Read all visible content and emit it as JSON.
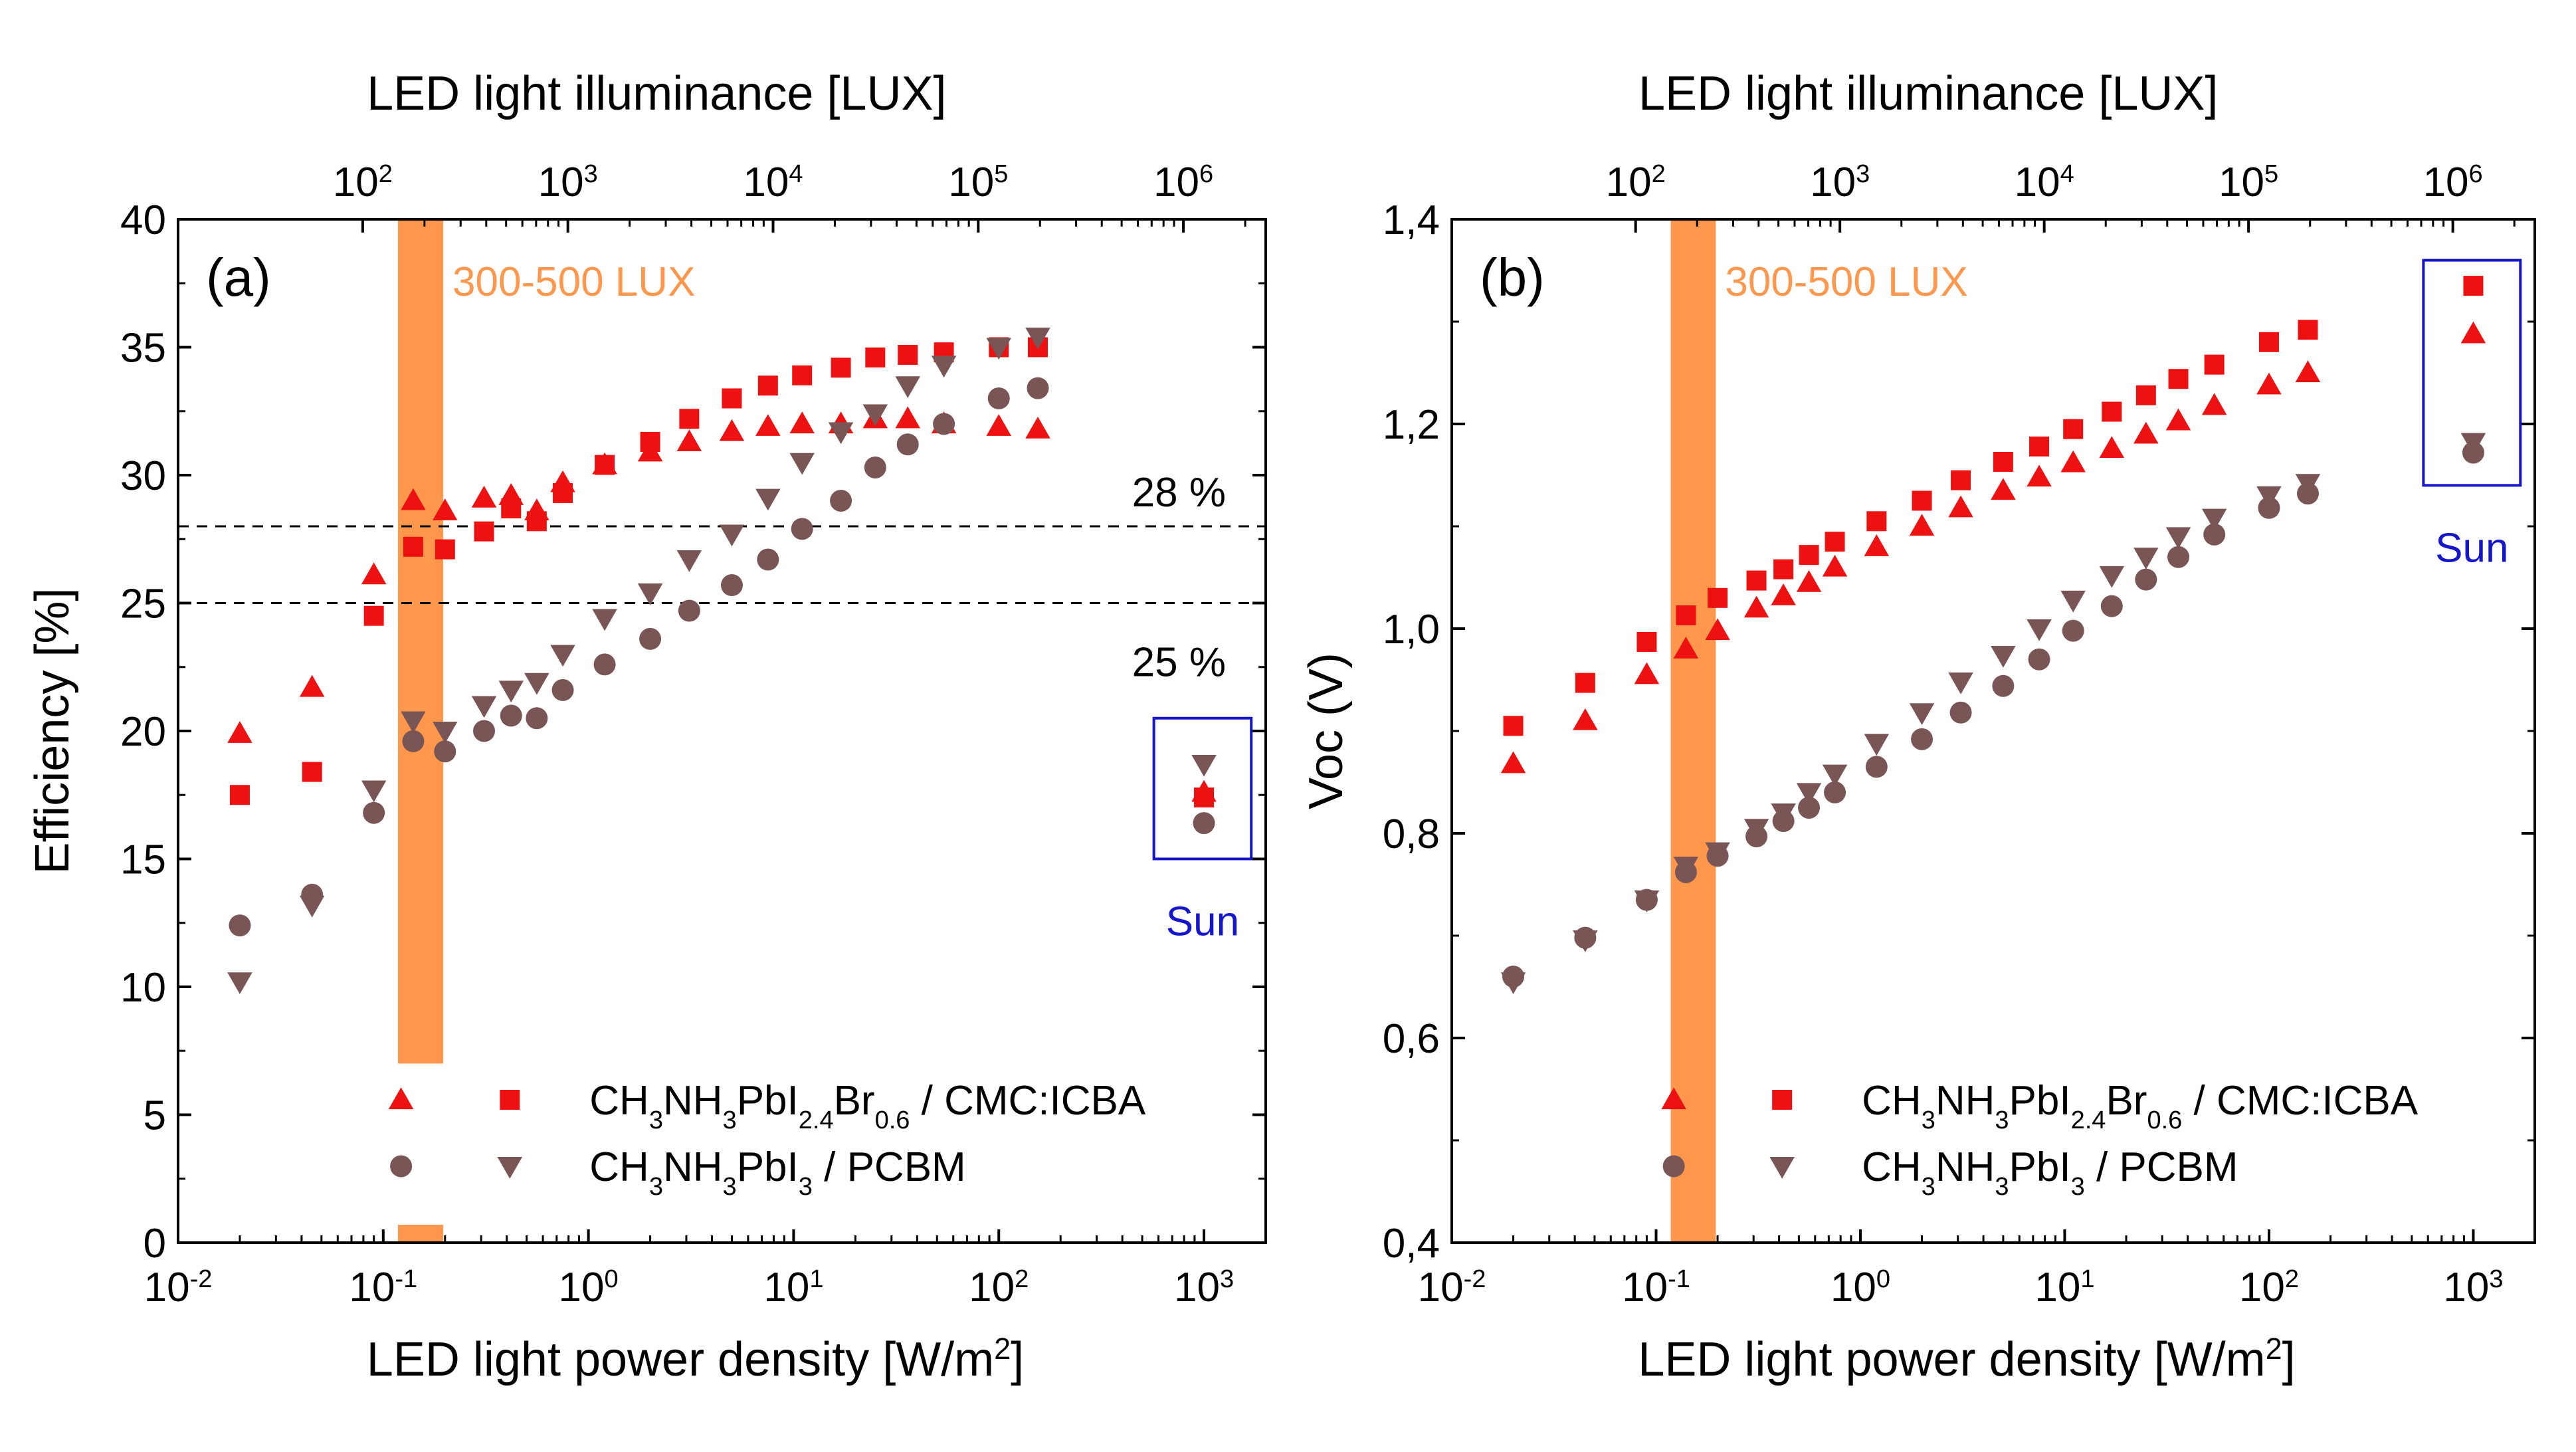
{
  "colors": {
    "red": "#ee1111",
    "brown": "#7a5555",
    "orange": "#ff974d",
    "blue": "#1515cc",
    "black": "#000000"
  },
  "chart_data": [
    {
      "type": "scatter",
      "panel_label": "(a)",
      "xlabel": "LED light power density [W/m",
      "xlabel_sup": "2",
      "xlabel_end": "]",
      "top_xlabel": "LED light illuminance [LUX]",
      "ylabel": "Efficiency [%]",
      "x_scale": "log",
      "xlim": [
        0.01,
        2000
      ],
      "ylim": [
        0,
        40
      ],
      "yticks": [
        {
          "value": 0,
          "label": "0"
        },
        {
          "value": 5,
          "label": "5"
        },
        {
          "value": 10,
          "label": "10"
        },
        {
          "value": 15,
          "label": "15"
        },
        {
          "value": 20,
          "label": "20"
        },
        {
          "value": 25,
          "label": "25"
        },
        {
          "value": 30,
          "label": "30"
        },
        {
          "value": 35,
          "label": "35"
        },
        {
          "value": 40,
          "label": "40"
        }
      ],
      "xticks": [
        {
          "value": 0.01,
          "base": "10",
          "exp": "-2"
        },
        {
          "value": 0.1,
          "base": "10",
          "exp": "-1"
        },
        {
          "value": 1,
          "base": "10",
          "exp": "0"
        },
        {
          "value": 10,
          "base": "10",
          "exp": "1"
        },
        {
          "value": 100,
          "base": "10",
          "exp": "2"
        },
        {
          "value": 1000,
          "base": "10",
          "exp": "3"
        }
      ],
      "top_xticks": [
        {
          "value": 0.0794,
          "base": "10",
          "exp": "2"
        },
        {
          "value": 0.794,
          "base": "10",
          "exp": "3"
        },
        {
          "value": 7.94,
          "base": "10",
          "exp": "4"
        },
        {
          "value": 79.4,
          "base": "10",
          "exp": "5"
        },
        {
          "value": 794,
          "base": "10",
          "exp": "6"
        }
      ],
      "lux_band": {
        "x0": 0.118,
        "x1": 0.196,
        "label": "300-500 LUX",
        "gap": [
          0.7,
          7.0
        ]
      },
      "reference_lines": [
        {
          "y": 28,
          "label": "28 %"
        },
        {
          "y": 25,
          "label": "25 %"
        }
      ],
      "sun": {
        "label": "Sun",
        "box": {
          "x0": 570,
          "x1": 1700,
          "y0": 15,
          "y1": 20.5
        },
        "points": [
          {
            "series": 0,
            "y": 17.6
          },
          {
            "series": 1,
            "y": 17.4
          },
          {
            "series": 2,
            "y": 16.4
          },
          {
            "series": 3,
            "y": 18.7
          }
        ]
      },
      "legend": {
        "formula_1": {
          "parts": [
            "CH",
            "3",
            "NH",
            "3",
            "PbI",
            "2.4",
            "Br",
            "0.6",
            " / CMC:ICBA"
          ]
        },
        "formula_2": {
          "parts": [
            "CH",
            "3",
            "NH",
            "3",
            "PbI",
            "3",
            " /  PCBM"
          ]
        }
      },
      "series": [
        {
          "marker": "triangle-up",
          "color": "#ee1111",
          "x": [
            0.02,
            0.045,
            0.09,
            0.14,
            0.2,
            0.31,
            0.42,
            0.56,
            0.75,
            1.2,
            2,
            3.1,
            5,
            7.5,
            11,
            17,
            25,
            36,
            54,
            100,
            155
          ],
          "y": [
            19.9,
            21.7,
            26.1,
            29.0,
            28.6,
            29.1,
            29.2,
            28.6,
            29.7,
            30.4,
            30.9,
            31.3,
            31.7,
            31.9,
            32.0,
            32.0,
            32.2,
            32.2,
            32.0,
            31.9,
            31.8
          ]
        },
        {
          "marker": "square",
          "color": "#ee1111",
          "x": [
            0.02,
            0.045,
            0.09,
            0.14,
            0.2,
            0.31,
            0.42,
            0.56,
            0.75,
            1.2,
            2,
            3.1,
            5,
            7.5,
            11,
            17,
            25,
            36,
            54,
            100,
            155
          ],
          "y": [
            17.5,
            18.4,
            24.5,
            27.2,
            27.1,
            27.8,
            28.7,
            28.2,
            29.3,
            30.4,
            31.3,
            32.2,
            33.0,
            33.5,
            33.9,
            34.2,
            34.6,
            34.7,
            34.8,
            35.0,
            35.0
          ]
        },
        {
          "marker": "circle",
          "color": "#7a5555",
          "x": [
            0.02,
            0.045,
            0.09,
            0.14,
            0.2,
            0.31,
            0.42,
            0.56,
            0.75,
            1.2,
            2,
            3.1,
            5,
            7.5,
            11,
            17,
            25,
            36,
            54,
            100,
            155
          ],
          "y": [
            12.4,
            13.6,
            16.8,
            19.6,
            19.2,
            20.0,
            20.6,
            20.5,
            21.6,
            22.6,
            23.6,
            24.7,
            25.7,
            26.7,
            27.9,
            29.0,
            30.3,
            31.2,
            32.0,
            33.0,
            33.4
          ]
        },
        {
          "marker": "triangle-down",
          "color": "#7a5555",
          "x": [
            0.02,
            0.045,
            0.09,
            0.14,
            0.2,
            0.31,
            0.42,
            0.56,
            0.75,
            1.2,
            2,
            3.1,
            5,
            7.5,
            11,
            17,
            25,
            36,
            54,
            100,
            155
          ],
          "y": [
            10.2,
            13.2,
            17.7,
            20.4,
            20.0,
            21.0,
            21.6,
            21.9,
            23.0,
            24.4,
            25.4,
            26.7,
            27.7,
            29.1,
            30.5,
            31.7,
            32.4,
            33.5,
            34.3,
            35.0,
            35.4
          ]
        }
      ]
    },
    {
      "type": "scatter",
      "panel_label": "(b)",
      "xlabel": "LED light power density [W/m",
      "xlabel_sup": "2",
      "xlabel_end": "]",
      "top_xlabel": "LED light illuminance [LUX]",
      "ylabel": "Voc (V)",
      "x_scale": "log",
      "xlim": [
        0.01,
        2000
      ],
      "ylim": [
        0.4,
        1.4
      ],
      "yticks": [
        {
          "value": 0.4,
          "label": "0,4"
        },
        {
          "value": 0.6,
          "label": "0,6"
        },
        {
          "value": 0.8,
          "label": "0,8"
        },
        {
          "value": 1.0,
          "label": "1,0"
        },
        {
          "value": 1.2,
          "label": "1,2"
        },
        {
          "value": 1.4,
          "label": "1,4"
        }
      ],
      "xticks": [
        {
          "value": 0.01,
          "base": "10",
          "exp": "-2"
        },
        {
          "value": 0.1,
          "base": "10",
          "exp": "-1"
        },
        {
          "value": 1,
          "base": "10",
          "exp": "0"
        },
        {
          "value": 10,
          "base": "10",
          "exp": "1"
        },
        {
          "value": 100,
          "base": "10",
          "exp": "2"
        },
        {
          "value": 1000,
          "base": "10",
          "exp": "3"
        }
      ],
      "top_xticks": [
        {
          "value": 0.0794,
          "base": "10",
          "exp": "2"
        },
        {
          "value": 0.794,
          "base": "10",
          "exp": "3"
        },
        {
          "value": 7.94,
          "base": "10",
          "exp": "4"
        },
        {
          "value": 79.4,
          "base": "10",
          "exp": "5"
        },
        {
          "value": 794,
          "base": "10",
          "exp": "6"
        }
      ],
      "lux_band": {
        "x0": 0.118,
        "x1": 0.196,
        "label": "300-500 LUX",
        "gap": null
      },
      "reference_lines": [],
      "sun": {
        "label": "Sun",
        "box": {
          "x0": 570,
          "x1": 1700,
          "y0": 1.14,
          "y1": 1.36
        },
        "points": [
          {
            "series": 0,
            "y": 1.288
          },
          {
            "series": 1,
            "y": 1.335
          },
          {
            "series": 2,
            "y": 1.172
          },
          {
            "series": 3,
            "y": 1.182
          }
        ]
      },
      "legend": {
        "formula_1": {
          "parts": [
            "CH",
            "3",
            "NH",
            "3",
            "PbI",
            "2.4",
            "Br",
            "0.6",
            " / CMC:ICBA"
          ]
        },
        "formula_2": {
          "parts": [
            "CH",
            "3",
            "NH",
            "3",
            "PbI",
            "3",
            " /  PCBM"
          ]
        }
      },
      "series": [
        {
          "marker": "triangle-up",
          "color": "#ee1111",
          "x": [
            0.02,
            0.045,
            0.09,
            0.14,
            0.2,
            0.31,
            0.42,
            0.56,
            0.75,
            1.2,
            2,
            3.1,
            5,
            7.5,
            11,
            17,
            25,
            36,
            54,
            100,
            155
          ],
          "y": [
            0.868,
            0.91,
            0.955,
            0.98,
            0.998,
            1.02,
            1.032,
            1.045,
            1.06,
            1.08,
            1.1,
            1.118,
            1.135,
            1.148,
            1.162,
            1.176,
            1.19,
            1.203,
            1.218,
            1.238,
            1.25
          ]
        },
        {
          "marker": "square",
          "color": "#ee1111",
          "x": [
            0.02,
            0.045,
            0.09,
            0.14,
            0.2,
            0.31,
            0.42,
            0.56,
            0.75,
            1.2,
            2,
            3.1,
            5,
            7.5,
            11,
            17,
            25,
            36,
            54,
            100,
            155
          ],
          "y": [
            0.905,
            0.947,
            0.987,
            1.013,
            1.03,
            1.047,
            1.058,
            1.072,
            1.085,
            1.105,
            1.125,
            1.145,
            1.163,
            1.178,
            1.195,
            1.212,
            1.228,
            1.244,
            1.258,
            1.28,
            1.292
          ]
        },
        {
          "marker": "circle",
          "color": "#7a5555",
          "x": [
            0.02,
            0.045,
            0.09,
            0.14,
            0.2,
            0.31,
            0.42,
            0.56,
            0.75,
            1.2,
            2,
            3.1,
            5,
            7.5,
            11,
            17,
            25,
            36,
            54,
            100,
            155
          ],
          "y": [
            0.66,
            0.698,
            0.735,
            0.762,
            0.778,
            0.797,
            0.812,
            0.825,
            0.84,
            0.865,
            0.892,
            0.918,
            0.944,
            0.97,
            0.998,
            1.022,
            1.048,
            1.07,
            1.092,
            1.118,
            1.132
          ]
        },
        {
          "marker": "triangle-down",
          "color": "#7a5555",
          "x": [
            0.02,
            0.045,
            0.09,
            0.14,
            0.2,
            0.31,
            0.42,
            0.56,
            0.75,
            1.2,
            2,
            3.1,
            5,
            7.5,
            11,
            17,
            25,
            36,
            54,
            100,
            155
          ],
          "y": [
            0.655,
            0.696,
            0.735,
            0.768,
            0.782,
            0.805,
            0.82,
            0.84,
            0.858,
            0.888,
            0.918,
            0.948,
            0.974,
            1.0,
            1.028,
            1.052,
            1.07,
            1.09,
            1.108,
            1.13,
            1.142
          ]
        }
      ]
    }
  ]
}
